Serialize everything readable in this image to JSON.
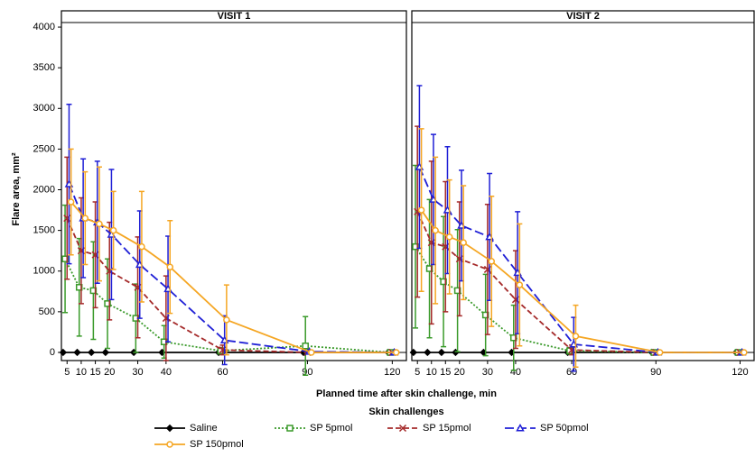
{
  "chart_data": [
    {
      "type": "line",
      "title": "VISIT 1",
      "ylabel": "Flare area, mm²",
      "xlabel": "Planned time after skin challenge, min",
      "legend_title": "Skin challenges",
      "x": [
        5,
        10,
        15,
        20,
        30,
        40,
        60,
        90,
        120
      ],
      "xlim": [
        3,
        125
      ],
      "xticks": [
        5,
        10,
        15,
        20,
        30,
        40,
        60,
        90,
        120
      ],
      "ylim": [
        -100,
        4200
      ],
      "yticks": [
        0,
        500,
        1000,
        1500,
        2000,
        2500,
        3000,
        3500,
        4000
      ],
      "series": [
        {
          "name": "Saline",
          "color": "#000000",
          "linestyle": "solid",
          "marker": "diamond",
          "values": [
            0,
            0,
            0,
            0,
            0,
            0,
            0,
            0,
            0
          ],
          "errors": [
            0,
            0,
            0,
            0,
            0,
            0,
            0,
            0,
            0
          ]
        },
        {
          "name": "SP 5pmol",
          "color": "#3a9a2a",
          "linestyle": "dotted",
          "marker": "square",
          "values": [
            1150,
            800,
            760,
            600,
            420,
            130,
            20,
            80,
            0
          ],
          "errors": [
            660,
            600,
            600,
            550,
            420,
            200,
            40,
            360,
            0
          ]
        },
        {
          "name": "SP 15pmol",
          "color": "#a52a2a",
          "linestyle": "dashed",
          "marker": "cross",
          "values": [
            1650,
            1250,
            1200,
            1000,
            800,
            420,
            30,
            0,
            0
          ],
          "errors": [
            750,
            650,
            650,
            600,
            620,
            520,
            60,
            0,
            0
          ]
        },
        {
          "name": "SP 50pmol",
          "color": "#1f1fd6",
          "linestyle": "longdash",
          "marker": "triangle",
          "values": [
            2070,
            1650,
            1600,
            1450,
            1080,
            780,
            150,
            10,
            0
          ],
          "errors": [
            980,
            730,
            750,
            800,
            660,
            650,
            300,
            20,
            0
          ]
        },
        {
          "name": "SP 150pmol",
          "color": "#f5a623",
          "linestyle": "solid",
          "marker": "circle",
          "values": [
            1850,
            1650,
            1580,
            1500,
            1300,
            1050,
            400,
            0,
            0
          ],
          "errors": [
            650,
            570,
            700,
            480,
            680,
            570,
            430,
            0,
            0
          ]
        }
      ]
    },
    {
      "type": "line",
      "title": "VISIT 2",
      "x": [
        5,
        10,
        15,
        20,
        30,
        40,
        60,
        90,
        120
      ],
      "xlim": [
        3,
        125
      ],
      "xticks": [
        5,
        10,
        15,
        20,
        30,
        40,
        60,
        90,
        120
      ],
      "ylim": [
        -100,
        4200
      ],
      "series": [
        {
          "name": "Saline",
          "color": "#000000",
          "linestyle": "solid",
          "marker": "diamond",
          "values": [
            0,
            0,
            0,
            0,
            0,
            0,
            0,
            0,
            0
          ],
          "errors": [
            0,
            0,
            0,
            0,
            0,
            0,
            0,
            0,
            0
          ]
        },
        {
          "name": "SP 5pmol",
          "color": "#3a9a2a",
          "linestyle": "dotted",
          "marker": "square",
          "values": [
            1300,
            1030,
            870,
            760,
            460,
            180,
            20,
            0,
            0
          ],
          "errors": [
            1000,
            850,
            800,
            750,
            500,
            400,
            40,
            0,
            0
          ]
        },
        {
          "name": "SP 15pmol",
          "color": "#a52a2a",
          "linestyle": "dashed",
          "marker": "cross",
          "values": [
            1730,
            1350,
            1300,
            1150,
            1020,
            650,
            30,
            0,
            0
          ],
          "errors": [
            1050,
            1000,
            800,
            700,
            800,
            600,
            60,
            0,
            0
          ]
        },
        {
          "name": "SP 50pmol",
          "color": "#1f1fd6",
          "linestyle": "longdash",
          "marker": "triangle",
          "values": [
            2280,
            1880,
            1750,
            1560,
            1420,
            980,
            100,
            0,
            0
          ],
          "errors": [
            1000,
            800,
            780,
            680,
            780,
            750,
            330,
            0,
            0
          ]
        },
        {
          "name": "SP 150pmol",
          "color": "#f5a623",
          "linestyle": "solid",
          "marker": "circle",
          "values": [
            1750,
            1500,
            1420,
            1350,
            1120,
            830,
            200,
            0,
            0
          ],
          "errors": [
            1000,
            900,
            700,
            700,
            800,
            750,
            380,
            0,
            0
          ]
        }
      ]
    }
  ]
}
